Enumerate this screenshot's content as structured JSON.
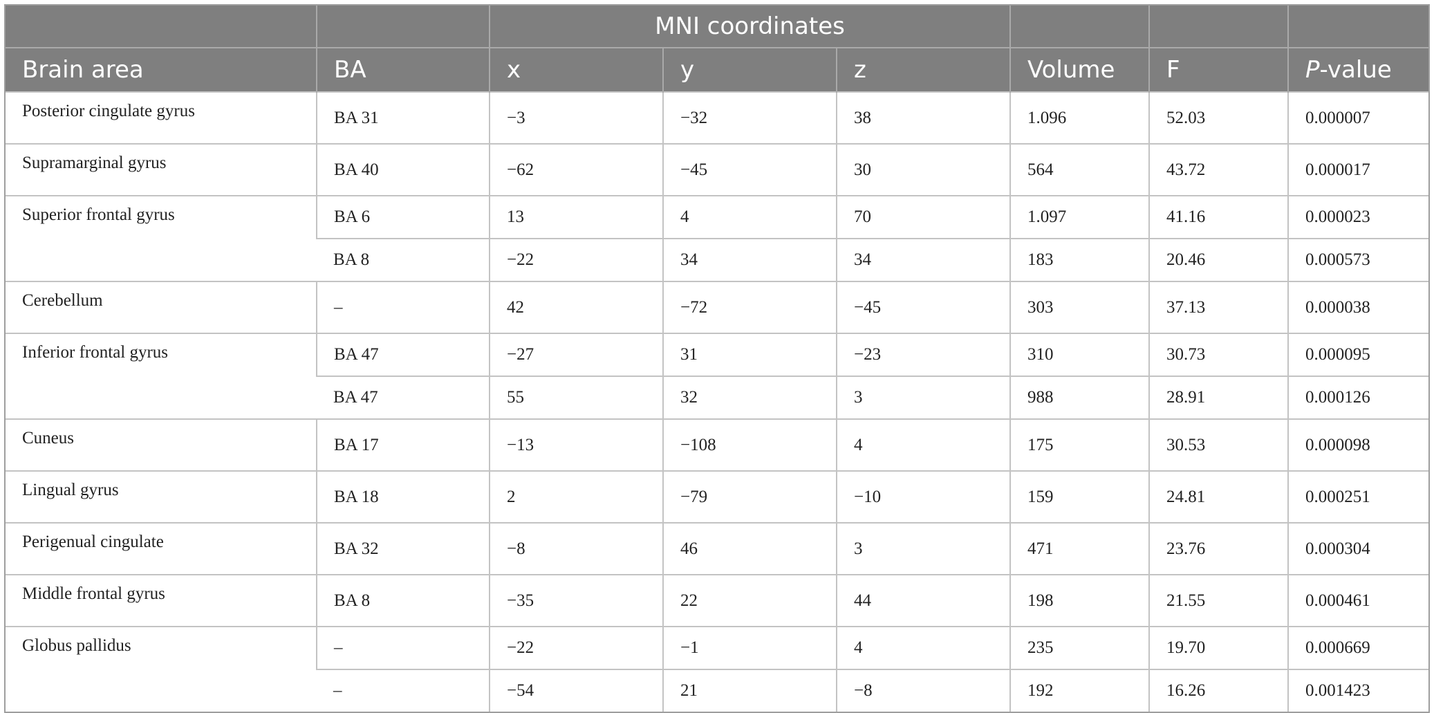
{
  "header": {
    "group_label": "MNI coordinates",
    "columns": {
      "area": "Brain area",
      "ba": "BA",
      "x": "x",
      "y": "y",
      "z": "z",
      "volume": "Volume",
      "f": "F",
      "p_italic": "P",
      "p_rest": "-value"
    }
  },
  "rows": [
    {
      "area": "Posterior cingulate gyrus",
      "ba": "BA 31",
      "x": "−3",
      "y": "−32",
      "z": "38",
      "volume": "1.096",
      "f": "52.03",
      "p": "0.000007"
    },
    {
      "area": "Supramarginal gyrus",
      "ba": "BA 40",
      "x": "−62",
      "y": "−45",
      "z": "30",
      "volume": "564",
      "f": "43.72",
      "p": "0.000017"
    },
    {
      "area": "Superior frontal gyrus",
      "ba": "BA 6",
      "x": "13",
      "y": "4",
      "z": "70",
      "volume": "1.097",
      "f": "41.16",
      "p": "0.000023"
    },
    {
      "area": "",
      "ba": "BA 8",
      "x": "−22",
      "y": "34",
      "z": "34",
      "volume": "183",
      "f": "20.46",
      "p": "0.000573"
    },
    {
      "area": "Cerebellum",
      "ba": "–",
      "x": "42",
      "y": "−72",
      "z": "−45",
      "volume": "303",
      "f": "37.13",
      "p": "0.000038"
    },
    {
      "area": "Inferior frontal gyrus",
      "ba": "BA 47",
      "x": "−27",
      "y": "31",
      "z": "−23",
      "volume": "310",
      "f": "30.73",
      "p": "0.000095"
    },
    {
      "area": "",
      "ba": "BA 47",
      "x": "55",
      "y": "32",
      "z": "3",
      "volume": "988",
      "f": "28.91",
      "p": "0.000126"
    },
    {
      "area": "Cuneus",
      "ba": "BA 17",
      "x": "−13",
      "y": "−108",
      "z": "4",
      "volume": "175",
      "f": "30.53",
      "p": "0.000098"
    },
    {
      "area": "Lingual gyrus",
      "ba": "BA 18",
      "x": "2",
      "y": "−79",
      "z": "−10",
      "volume": "159",
      "f": "24.81",
      "p": "0.000251"
    },
    {
      "area": "Perigenual cingulate",
      "ba": "BA 32",
      "x": "−8",
      "y": "46",
      "z": "3",
      "volume": "471",
      "f": "23.76",
      "p": "0.000304"
    },
    {
      "area": "Middle frontal gyrus",
      "ba": "BA 8",
      "x": "−35",
      "y": "22",
      "z": "44",
      "volume": "198",
      "f": "21.55",
      "p": "0.000461"
    },
    {
      "area": "Globus pallidus",
      "ba": "–",
      "x": "−22",
      "y": "−1",
      "z": "4",
      "volume": "235",
      "f": "19.70",
      "p": "0.000669"
    },
    {
      "area": "",
      "ba": "–",
      "x": "−54",
      "y": "21",
      "z": "−8",
      "volume": "192",
      "f": "16.26",
      "p": "0.001423"
    }
  ]
}
